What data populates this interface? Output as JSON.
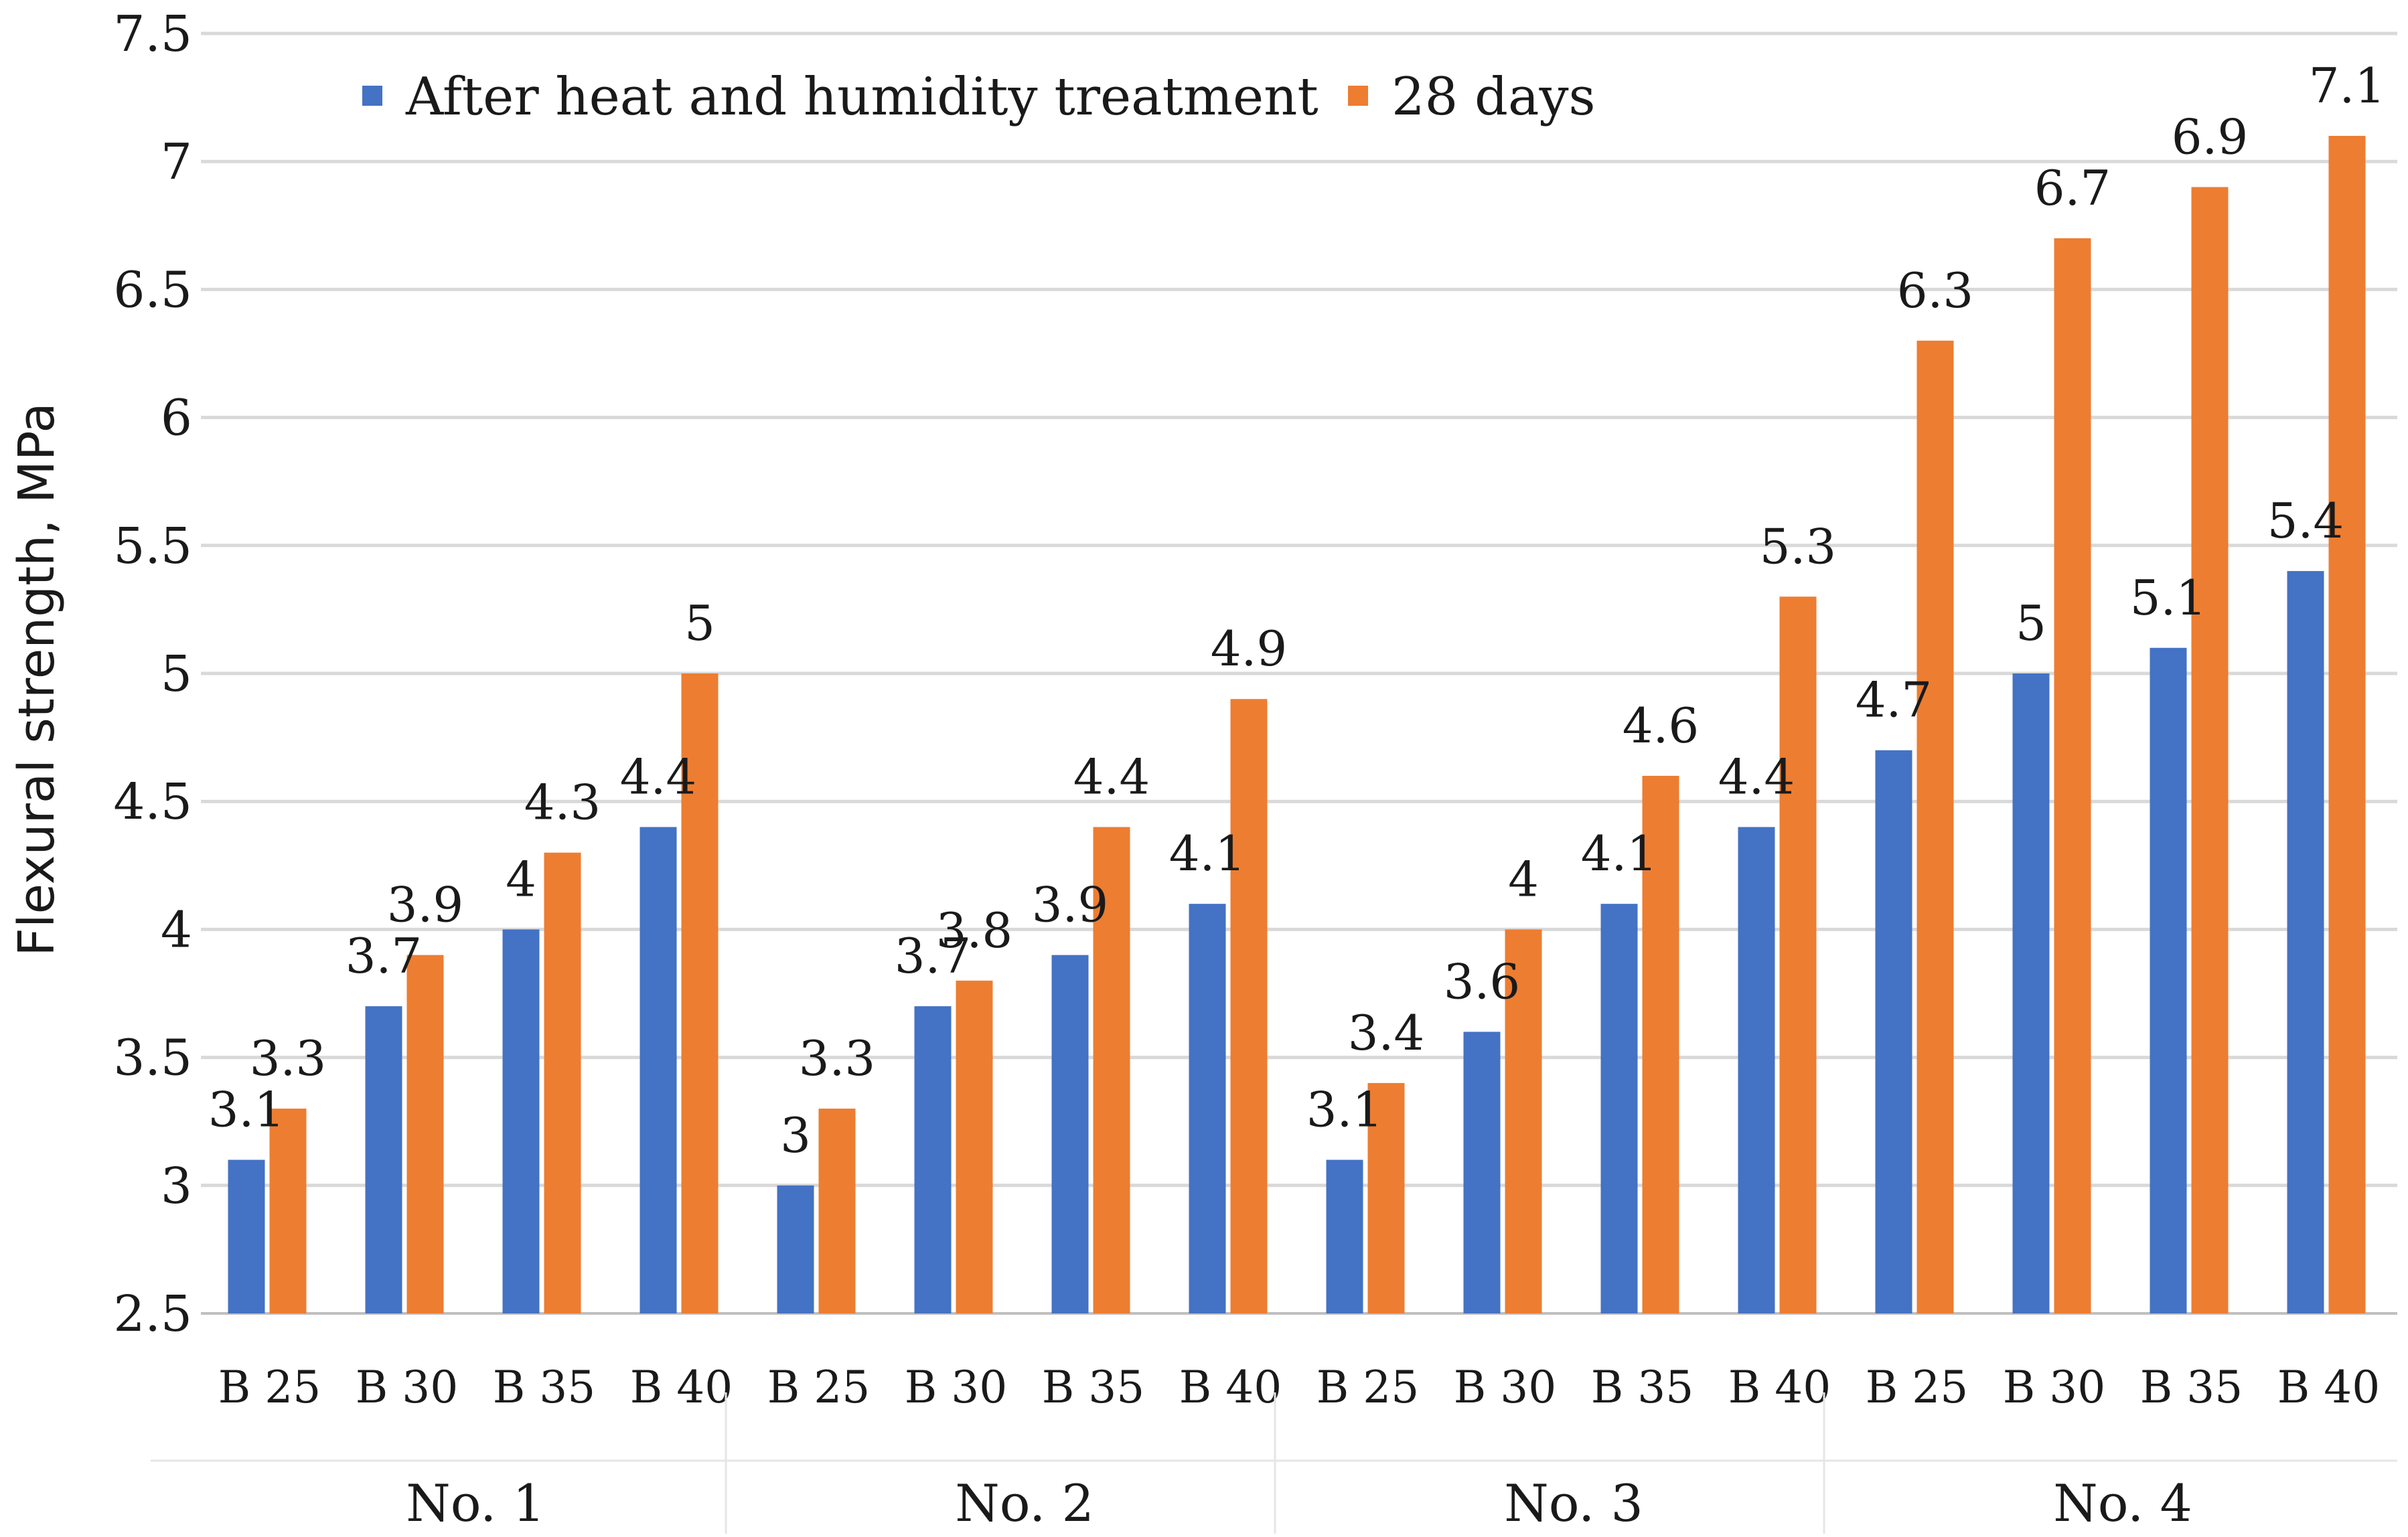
{
  "chart_data": {
    "type": "bar",
    "title": "",
    "xlabel": "",
    "ylabel": "Flexural strength, MPa",
    "ylim": [
      2.5,
      7.5
    ],
    "yticks": [
      "2.5",
      "3",
      "3.5",
      "4",
      "4.5",
      "5",
      "5.5",
      "6",
      "6.5",
      "7",
      "7.5"
    ],
    "grid": true,
    "legend_position": "top-left",
    "groups": [
      "No. 1",
      "No. 2",
      "No. 3",
      "No. 4"
    ],
    "categories": [
      "B 25",
      "B 30",
      "B 35",
      "B 40",
      "B 25",
      "B 30",
      "B 35",
      "B 40",
      "B 25",
      "B 30",
      "B 35",
      "B 40",
      "B 25",
      "B 30",
      "B 35",
      "B 40"
    ],
    "series": [
      {
        "name": "After heat and humidity treatment",
        "color": "#4472C4",
        "values": [
          3.1,
          3.7,
          4,
          4.4,
          3,
          3.7,
          3.9,
          4.1,
          3.1,
          3.6,
          4.1,
          4.4,
          4.7,
          5,
          5.1,
          5.4
        ],
        "labels": [
          "3.1",
          "3.7",
          "4",
          "4.4",
          "3",
          "3.7",
          "3.9",
          "4.1",
          "3.1",
          "3.6",
          "4.1",
          "4.4",
          "4.7",
          "5",
          "5.1",
          "5.4"
        ]
      },
      {
        "name": "28 days",
        "color": "#ED7D31",
        "values": [
          3.3,
          3.9,
          4.3,
          5,
          3.3,
          3.8,
          4.4,
          4.9,
          3.4,
          4,
          4.6,
          5.3,
          6.3,
          6.7,
          6.9,
          7.1
        ],
        "labels": [
          "3.3",
          "3.9",
          "4.3",
          "5",
          "3.3",
          "3.8",
          "4.4",
          "4.9",
          "3.4",
          "4",
          "4.6",
          "5.3",
          "6.3",
          "6.7",
          "6.9",
          "7.1"
        ]
      }
    ]
  }
}
